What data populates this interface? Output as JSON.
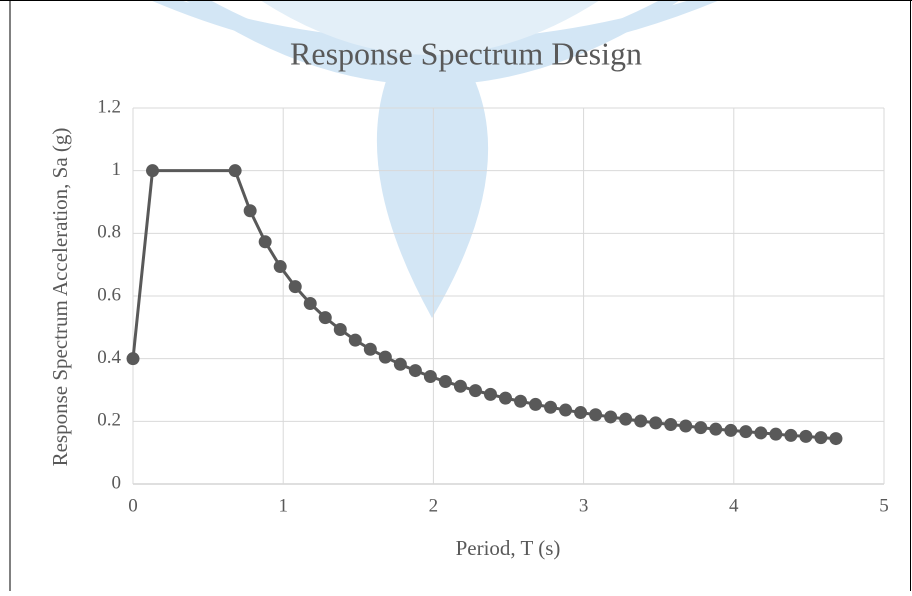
{
  "chart_data": {
    "type": "line",
    "title": "Response Spectrum Design",
    "x_label": "Period, T (s)",
    "y_label": "Response Spectrum Acceleration, Sa (g)",
    "x": [
      0,
      0.13,
      0.68,
      0.78,
      0.88,
      0.98,
      1.08,
      1.18,
      1.28,
      1.38,
      1.48,
      1.58,
      1.68,
      1.78,
      1.88,
      1.98,
      2.08,
      2.18,
      2.28,
      2.38,
      2.48,
      2.58,
      2.68,
      2.78,
      2.88,
      2.98,
      3.08,
      3.18,
      3.28,
      3.38,
      3.48,
      3.58,
      3.68,
      3.78,
      3.88,
      3.98,
      4.08,
      4.18,
      4.28,
      4.38,
      4.48,
      4.58,
      4.68
    ],
    "values": [
      0.4,
      1,
      1,
      0.872,
      0.773,
      0.694,
      0.63,
      0.576,
      0.531,
      0.493,
      0.459,
      0.43,
      0.405,
      0.382,
      0.362,
      0.343,
      0.327,
      0.312,
      0.298,
      0.286,
      0.274,
      0.264,
      0.254,
      0.245,
      0.236,
      0.228,
      0.221,
      0.214,
      0.207,
      0.201,
      0.195,
      0.19,
      0.185,
      0.18,
      0.175,
      0.171,
      0.167,
      0.163,
      0.159,
      0.155,
      0.152,
      0.148,
      0.145
    ],
    "color": "#595959",
    "xlim": [
      0,
      5
    ],
    "xticks": [
      0,
      1,
      2,
      3,
      4,
      5
    ],
    "ylim": [
      0,
      1.2
    ],
    "yticks": [
      0,
      0.2,
      0.4,
      0.6,
      0.8,
      1,
      1.2
    ],
    "grid": true
  }
}
